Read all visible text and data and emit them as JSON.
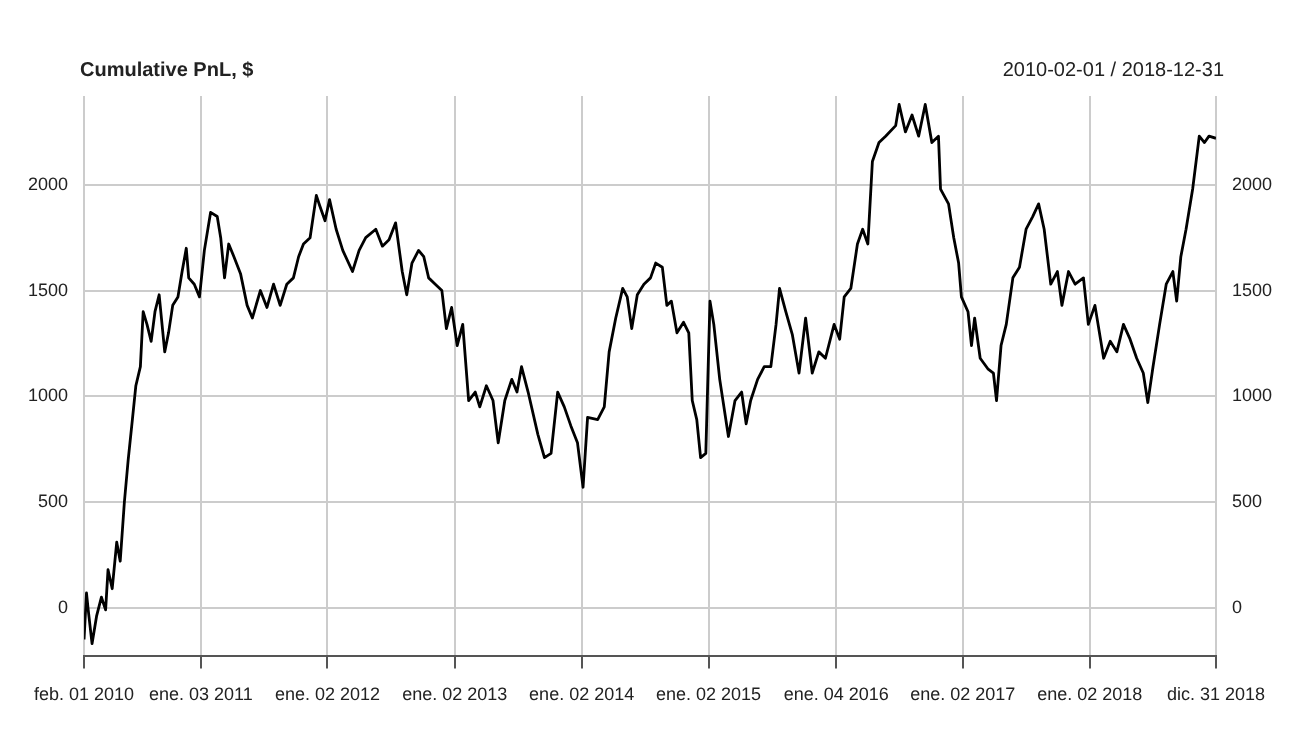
{
  "chart_data": {
    "type": "line",
    "title": "Cumulative PnL, $",
    "subtitle": "2010-02-01 / 2018-12-31",
    "xlim": [
      "2010-02-01",
      "2018-12-31"
    ],
    "xticks": [
      {
        "value": "2010-02-01",
        "label": "feb. 01 2010"
      },
      {
        "value": "2011-01-03",
        "label": "ene. 03 2011"
      },
      {
        "value": "2012-01-02",
        "label": "ene. 02 2012"
      },
      {
        "value": "2013-01-02",
        "label": "ene. 02 2013"
      },
      {
        "value": "2014-01-02",
        "label": "ene. 02 2014"
      },
      {
        "value": "2015-01-02",
        "label": "ene. 02 2015"
      },
      {
        "value": "2016-01-04",
        "label": "ene. 04 2016"
      },
      {
        "value": "2017-01-02",
        "label": "ene. 02 2017"
      },
      {
        "value": "2018-01-02",
        "label": "ene. 02 2018"
      },
      {
        "value": "2018-12-31",
        "label": "dic. 31 2018"
      }
    ],
    "ylim": [
      -230,
      2420
    ],
    "yticks": [
      0,
      500,
      1000,
      1500,
      2000
    ],
    "y2lim": [
      -230,
      2420
    ],
    "y2ticks": [
      0,
      500,
      1000,
      1500,
      2000
    ],
    "grid": true,
    "legend": false,
    "marker": "none",
    "line_style": "solid",
    "series": [
      {
        "color": "#000000",
        "x": [
          "2010-02-01",
          "2010-02-08",
          "2010-02-13",
          "2010-02-24",
          "2010-03-09",
          "2010-03-23",
          "2010-04-04",
          "2010-04-11",
          "2010-04-23",
          "2010-05-06",
          "2010-05-16",
          "2010-05-28",
          "2010-06-08",
          "2010-06-20",
          "2010-06-30",
          "2010-07-13",
          "2010-07-21",
          "2010-08-01",
          "2010-08-13",
          "2010-08-24",
          "2010-09-05",
          "2010-09-21",
          "2010-10-02",
          "2010-10-14",
          "2010-10-29",
          "2010-11-10",
          "2010-11-22",
          "2010-11-29",
          "2010-12-15",
          "2010-12-30",
          "2011-01-13",
          "2011-01-31",
          "2011-02-19",
          "2011-03-01",
          "2011-03-12",
          "2011-03-24",
          "2011-04-08",
          "2011-04-27",
          "2011-05-16",
          "2011-05-31",
          "2011-06-23",
          "2011-07-12",
          "2011-07-31",
          "2011-08-19",
          "2011-09-07",
          "2011-09-26",
          "2011-10-11",
          "2011-10-25",
          "2011-11-13",
          "2011-12-01",
          "2011-12-11",
          "2011-12-26",
          "2012-01-08",
          "2012-01-27",
          "2012-02-15",
          "2012-03-14",
          "2012-04-02",
          "2012-04-21",
          "2012-05-20",
          "2012-06-08",
          "2012-06-27",
          "2012-07-16",
          "2012-08-04",
          "2012-08-17",
          "2012-09-01",
          "2012-09-20",
          "2012-10-05",
          "2012-10-19",
          "2012-11-07",
          "2012-11-26",
          "2012-12-09",
          "2012-12-24",
          "2013-01-09",
          "2013-01-25",
          "2013-02-11",
          "2013-03-02",
          "2013-03-15",
          "2013-04-03",
          "2013-04-22",
          "2013-05-07",
          "2013-05-26",
          "2013-06-15",
          "2013-06-30",
          "2013-07-13",
          "2013-08-01",
          "2013-08-29",
          "2013-09-17",
          "2013-10-06",
          "2013-10-25",
          "2013-11-13",
          "2013-12-02",
          "2013-12-21",
          "2014-01-06",
          "2014-01-19",
          "2014-02-17",
          "2014-03-08",
          "2014-03-22",
          "2014-04-10",
          "2014-04-30",
          "2014-05-13",
          "2014-05-26",
          "2014-06-11",
          "2014-06-30",
          "2014-07-19",
          "2014-08-03",
          "2014-08-22",
          "2014-09-04",
          "2014-09-17",
          "2014-10-03",
          "2014-10-22",
          "2014-11-06",
          "2014-11-16",
          "2014-11-29",
          "2014-12-10",
          "2014-12-25",
          "2015-01-06",
          "2015-01-17",
          "2015-02-03",
          "2015-02-28",
          "2015-03-19",
          "2015-04-07",
          "2015-04-20",
          "2015-05-03",
          "2015-05-23",
          "2015-06-11",
          "2015-06-30",
          "2015-07-15",
          "2015-07-25",
          "2015-08-12",
          "2015-08-31",
          "2015-09-19",
          "2015-10-08",
          "2015-10-27",
          "2015-11-15",
          "2015-12-04",
          "2015-12-29",
          "2016-01-14",
          "2016-01-27",
          "2016-02-15",
          "2016-03-05",
          "2016-03-20",
          "2016-04-04",
          "2016-04-17",
          "2016-05-06",
          "2016-05-25",
          "2016-06-23",
          "2016-07-03",
          "2016-07-21",
          "2016-08-09",
          "2016-08-28",
          "2016-09-16",
          "2016-10-05",
          "2016-10-24",
          "2016-10-30",
          "2016-11-22",
          "2016-12-07",
          "2016-12-21",
          "2016-12-29",
          "2017-01-17",
          "2017-01-27",
          "2017-02-05",
          "2017-02-21",
          "2017-03-15",
          "2017-03-31",
          "2017-04-09",
          "2017-04-22",
          "2017-05-07",
          "2017-05-26",
          "2017-06-14",
          "2017-07-03",
          "2017-07-22",
          "2017-08-08",
          "2017-08-24",
          "2017-09-12",
          "2017-10-01",
          "2017-10-14",
          "2017-11-02",
          "2017-11-21",
          "2017-12-15",
          "2017-12-29",
          "2018-01-17",
          "2018-02-11",
          "2018-03-02",
          "2018-03-21",
          "2018-04-09",
          "2018-04-28",
          "2018-05-17",
          "2018-06-05",
          "2018-06-18",
          "2018-07-03",
          "2018-07-22",
          "2018-08-10",
          "2018-08-29",
          "2018-09-09",
          "2018-09-21",
          "2018-10-06",
          "2018-10-25",
          "2018-11-13",
          "2018-11-28",
          "2018-12-11",
          "2018-12-31"
        ],
        "values": [
          -150,
          70,
          -10,
          -170,
          -40,
          50,
          -10,
          180,
          90,
          310,
          220,
          500,
          700,
          890,
          1050,
          1140,
          1400,
          1340,
          1260,
          1400,
          1480,
          1210,
          1300,
          1430,
          1470,
          1590,
          1700,
          1560,
          1530,
          1470,
          1690,
          1870,
          1850,
          1750,
          1560,
          1720,
          1660,
          1580,
          1430,
          1370,
          1500,
          1420,
          1530,
          1430,
          1530,
          1560,
          1660,
          1720,
          1750,
          1950,
          1900,
          1830,
          1930,
          1790,
          1690,
          1590,
          1690,
          1750,
          1790,
          1710,
          1740,
          1820,
          1590,
          1480,
          1630,
          1690,
          1660,
          1560,
          1530,
          1500,
          1320,
          1420,
          1240,
          1340,
          980,
          1020,
          950,
          1050,
          980,
          780,
          980,
          1080,
          1020,
          1140,
          1020,
          820,
          710,
          730,
          1020,
          950,
          860,
          780,
          570,
          900,
          890,
          950,
          1210,
          1370,
          1510,
          1470,
          1320,
          1480,
          1530,
          1560,
          1630,
          1610,
          1430,
          1450,
          1300,
          1350,
          1300,
          980,
          890,
          710,
          730,
          1450,
          1340,
          1080,
          810,
          980,
          1020,
          870,
          980,
          1080,
          1140,
          1140,
          1340,
          1510,
          1400,
          1290,
          1110,
          1370,
          1110,
          1210,
          1180,
          1340,
          1270,
          1470,
          1510,
          1720,
          1790,
          1720,
          2110,
          2200,
          2230,
          2280,
          2380,
          2250,
          2330,
          2230,
          2380,
          2200,
          2230,
          1980,
          1910,
          1750,
          1630,
          1470,
          1400,
          1240,
          1370,
          1180,
          1130,
          1110,
          980,
          1240,
          1340,
          1560,
          1610,
          1790,
          1850,
          1910,
          1790,
          1530,
          1590,
          1430,
          1590,
          1530,
          1560,
          1340,
          1430,
          1180,
          1260,
          1210,
          1340,
          1270,
          1180,
          1110,
          970,
          1140,
          1340,
          1530,
          1590,
          1450,
          1660,
          1790,
          1980,
          2230,
          2200,
          2230,
          2220
        ]
      }
    ]
  }
}
